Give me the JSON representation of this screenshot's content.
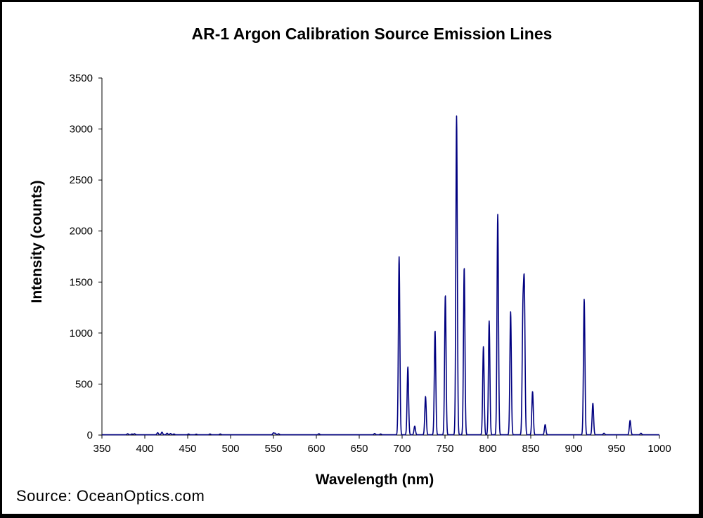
{
  "chart_data": {
    "type": "line",
    "title": "AR-1 Argon Calibration Source Emission Lines",
    "xlabel": "Wavelength (nm)",
    "ylabel": "Intensity (counts)",
    "xlim": [
      350,
      1000
    ],
    "ylim": [
      0,
      3500
    ],
    "xticks": [
      350,
      400,
      450,
      500,
      550,
      600,
      650,
      700,
      750,
      800,
      850,
      900,
      950,
      1000
    ],
    "yticks": [
      0,
      500,
      1000,
      1500,
      2000,
      2500,
      3000,
      3500
    ],
    "grid": false,
    "legend": "none",
    "line_color": "#000080",
    "baseline": 3,
    "series": [
      {
        "peaks": [
          {
            "x": 380,
            "y": 10
          },
          {
            "x": 385,
            "y": 8
          },
          {
            "x": 388,
            "y": 10
          },
          {
            "x": 415,
            "y": 20
          },
          {
            "x": 420,
            "y": 25
          },
          {
            "x": 426,
            "y": 15
          },
          {
            "x": 430,
            "y": 12
          },
          {
            "x": 434,
            "y": 8
          },
          {
            "x": 451,
            "y": 8
          },
          {
            "x": 460,
            "y": 6
          },
          {
            "x": 476,
            "y": 8
          },
          {
            "x": 488,
            "y": 8
          },
          {
            "x": 550,
            "y": 18
          },
          {
            "x": 552,
            "y": 14
          },
          {
            "x": 556,
            "y": 10
          },
          {
            "x": 603,
            "y": 10
          },
          {
            "x": 668,
            "y": 12
          },
          {
            "x": 675,
            "y": 8
          },
          {
            "x": 696.5,
            "y": 1745
          },
          {
            "x": 706.7,
            "y": 665
          },
          {
            "x": 714.7,
            "y": 85
          },
          {
            "x": 727.3,
            "y": 375
          },
          {
            "x": 738.4,
            "y": 1020
          },
          {
            "x": 750.4,
            "y": 1370
          },
          {
            "x": 763.5,
            "y": 3125
          },
          {
            "x": 772.4,
            "y": 1640
          },
          {
            "x": 794.8,
            "y": 865
          },
          {
            "x": 801.5,
            "y": 1115
          },
          {
            "x": 811.5,
            "y": 2160
          },
          {
            "x": 826.5,
            "y": 1205
          },
          {
            "x": 840.8,
            "y": 1115
          },
          {
            "x": 842.5,
            "y": 1375
          },
          {
            "x": 852.1,
            "y": 425
          },
          {
            "x": 866.8,
            "y": 100
          },
          {
            "x": 912.3,
            "y": 1330
          },
          {
            "x": 922.4,
            "y": 310
          },
          {
            "x": 935.4,
            "y": 15
          },
          {
            "x": 965.8,
            "y": 140
          },
          {
            "x": 978.5,
            "y": 15
          }
        ]
      }
    ]
  },
  "source_text": "Source:  OceanOptics.com"
}
